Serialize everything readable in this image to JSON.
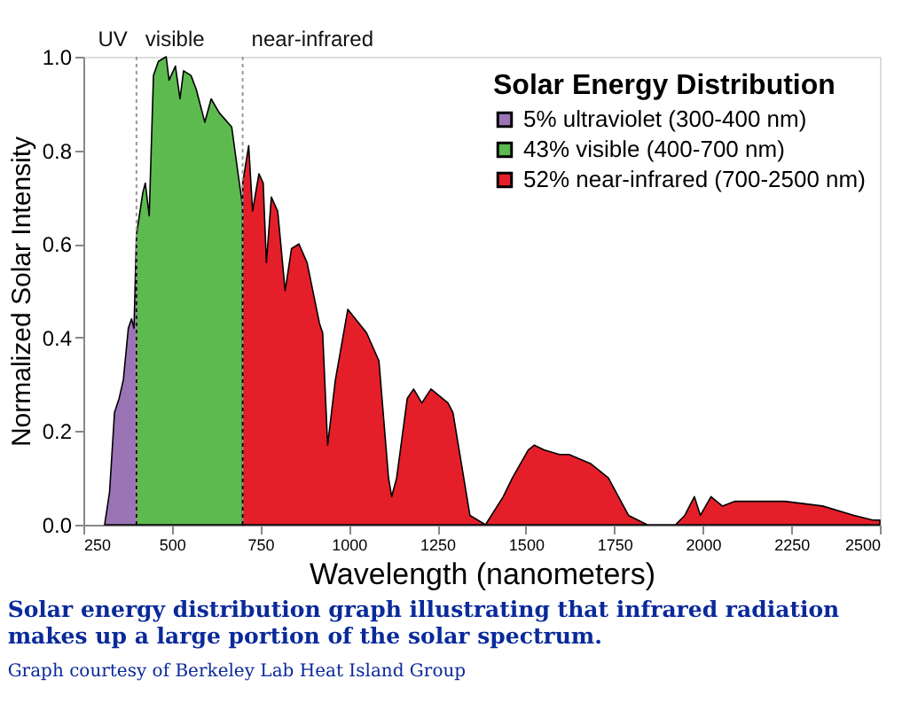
{
  "chart_data": {
    "type": "area",
    "title": "Solar energy distribution graph illustrating that infrared radiation makes up a large portion of the solar spectrum.",
    "xlabel": "Wavelength (nanometers)",
    "ylabel": "Normalized Solar Intensity",
    "legend_title": "Solar Energy Distribution",
    "legend": "top right",
    "xlim": [
      250,
      2500
    ],
    "xticks": [
      250,
      500,
      750,
      1000,
      1250,
      1500,
      1750,
      2000,
      2250,
      2500
    ],
    "ylim": [
      0,
      1
    ],
    "yticks": [
      {
        "value": 0,
        "label": "0.0"
      },
      {
        "value": 0.2,
        "label": "0.2"
      },
      {
        "value": 0.4,
        "label": "0.4"
      },
      {
        "value": 0.6,
        "label": "0.6"
      },
      {
        "value": 0.8,
        "label": "0.8"
      },
      {
        "value": 1,
        "label": "1.0"
      }
    ],
    "grid": false,
    "ref_lines": [
      {
        "axis": "x",
        "value": 400,
        "color": "#999999",
        "line_style": "dotted"
      },
      {
        "axis": "x",
        "value": 700,
        "color": "#999999",
        "line_style": "dotted"
      }
    ],
    "annotations": [
      "UV",
      "visible",
      "near-infrared",
      "Graph courtesy of Berkeley Lab Heat Island Group"
    ],
    "series": [
      {
        "name": "5% ultraviolet (300-400 nm)",
        "color": "#9b74b6",
        "x": [
          310,
          324,
          338,
          351,
          363,
          377,
          386,
          393,
          400
        ],
        "values": [
          0,
          0.07,
          0.24,
          0.27,
          0.31,
          0.42,
          0.44,
          0.42,
          0.62
        ]
      },
      {
        "name": "43% visible (400-700 nm)",
        "color": "#5dba4f",
        "x": [
          400,
          418,
          425,
          436,
          448,
          462,
          484,
          492,
          510,
          523,
          533,
          554,
          569,
          593,
          611,
          634,
          669,
          687,
          700
        ],
        "values": [
          0.62,
          0.71,
          0.73,
          0.66,
          0.96,
          0.99,
          1.0,
          0.95,
          0.98,
          0.91,
          0.97,
          0.96,
          0.93,
          0.86,
          0.91,
          0.88,
          0.85,
          0.75,
          0.68
        ]
      },
      {
        "name": "52% near-infrared (700-2500 nm)",
        "color": "#e51f2a",
        "x": [
          700,
          717,
          728,
          746,
          758,
          767,
          781,
          799,
          820,
          838,
          859,
          882,
          917,
          926,
          940,
          962,
          997,
          1050,
          1085,
          1112,
          1121,
          1135,
          1165,
          1183,
          1206,
          1232,
          1280,
          1294,
          1342,
          1386,
          1436,
          1462,
          1507,
          1524,
          1551,
          1595,
          1622,
          1684,
          1733,
          1790,
          1843,
          1923,
          1949,
          1976,
          1993,
          2023,
          2055,
          2091,
          2232,
          2338,
          2427,
          2480,
          2500
        ],
        "values": [
          0.73,
          0.81,
          0.67,
          0.75,
          0.73,
          0.56,
          0.7,
          0.67,
          0.5,
          0.59,
          0.6,
          0.56,
          0.43,
          0.41,
          0.17,
          0.31,
          0.46,
          0.41,
          0.35,
          0.1,
          0.06,
          0.1,
          0.27,
          0.29,
          0.26,
          0.29,
          0.26,
          0.24,
          0.02,
          0,
          0.06,
          0.1,
          0.16,
          0.17,
          0.16,
          0.15,
          0.15,
          0.13,
          0.1,
          0.02,
          0,
          0,
          0.02,
          0.06,
          0.02,
          0.06,
          0.04,
          0.05,
          0.05,
          0.04,
          0.02,
          0.01,
          0.01
        ]
      }
    ]
  }
}
